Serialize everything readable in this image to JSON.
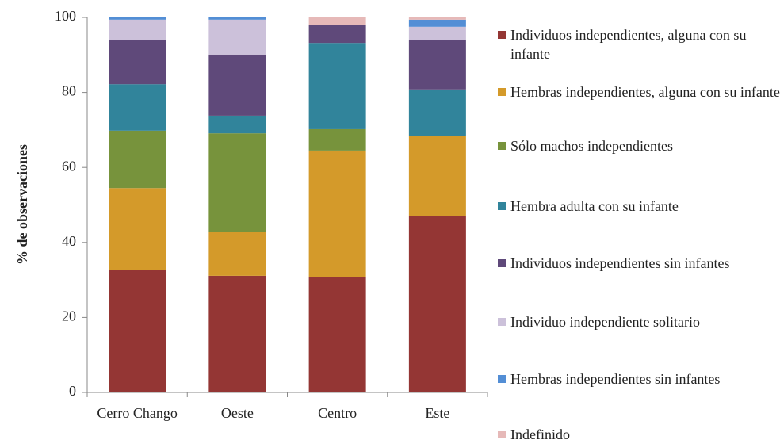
{
  "chart_data": {
    "type": "stacked_bar",
    "ylabel": "% de observaciones",
    "categories": [
      "Cerro Chango",
      "Oeste",
      "Centro",
      "Este"
    ],
    "series": [
      {
        "name": "Individuos independientes, alguna con su infante",
        "color": "#943634",
        "values": [
          32.6,
          31.1,
          30.7,
          47.1
        ]
      },
      {
        "name": "Hembras independientes, alguna con su infante",
        "color": "#d49a2a",
        "values": [
          21.9,
          11.8,
          33.8,
          21.4
        ]
      },
      {
        "name": "Sólo machos independientes",
        "color": "#77933c",
        "values": [
          15.3,
          26.2,
          5.7,
          0
        ]
      },
      {
        "name": "Hembra adulta con su infante",
        "color": "#31849b",
        "values": [
          12.4,
          4.7,
          23.0,
          12.3
        ]
      },
      {
        "name": "Individuos independientes sin infantes",
        "color": "#5f497a",
        "values": [
          11.7,
          16.3,
          4.7,
          13.1
        ]
      },
      {
        "name": "Individuo independiente solitario",
        "color": "#ccc1da",
        "values": [
          5.5,
          9.3,
          0,
          3.6
        ]
      },
      {
        "name": "Hembras independientes sin infantes",
        "color": "#538ed5",
        "values": [
          0.6,
          0.6,
          0,
          1.9
        ]
      },
      {
        "name": "Indefinido",
        "color": "#e6b9b8",
        "values": [
          0,
          0,
          2.1,
          0.6
        ]
      }
    ],
    "ylim": [
      0,
      100
    ],
    "yticks": [
      0,
      20,
      40,
      60,
      80,
      100
    ]
  }
}
